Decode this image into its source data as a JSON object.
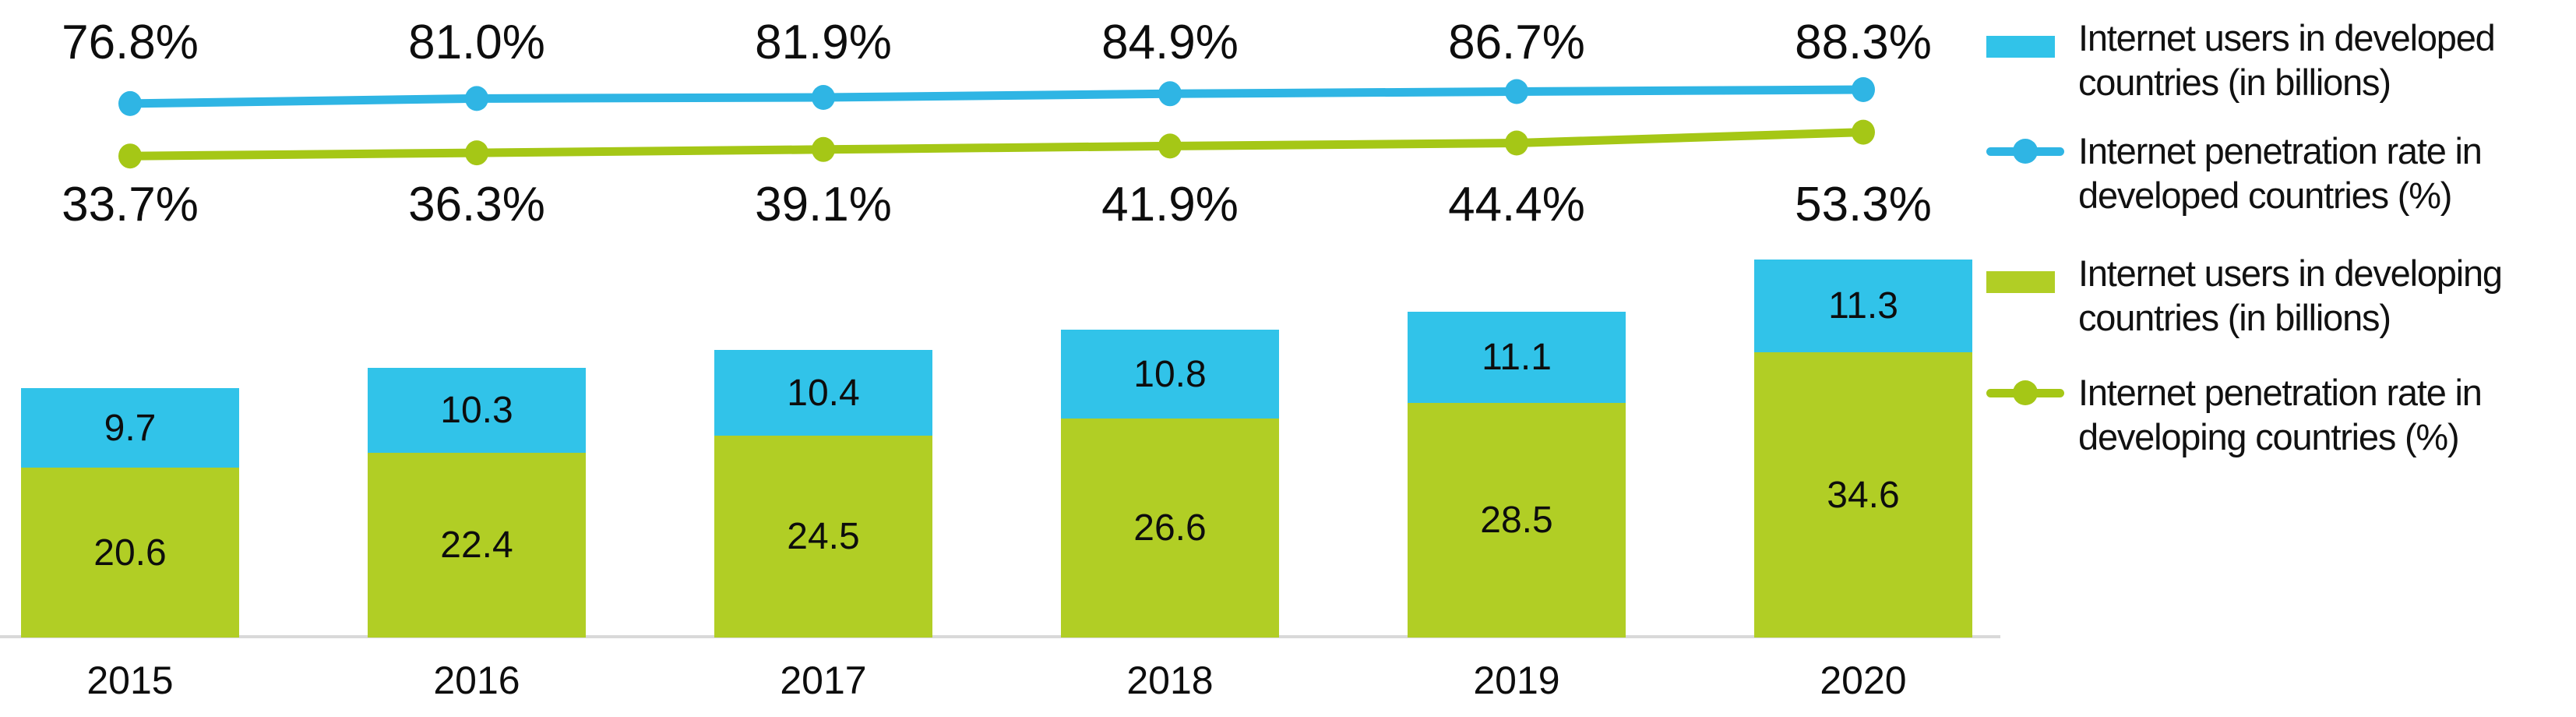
{
  "chart_data": {
    "type": "combo-stacked-bar-line",
    "title": "",
    "categories": [
      "2015",
      "2016",
      "2017",
      "2018",
      "2019",
      "2020"
    ],
    "bar_series": [
      {
        "name": "Internet users in developing countries (in billions)",
        "stack_position": "bottom",
        "color": "#b1ce25",
        "values": [
          20.6,
          22.4,
          24.5,
          26.6,
          28.5,
          34.6
        ],
        "labels": [
          "20.6",
          "22.4",
          "24.5",
          "26.6",
          "28.5",
          "34.6"
        ]
      },
      {
        "name": "Internet users in developed countries (in billions)",
        "stack_position": "top",
        "color": "#31c3e9",
        "values": [
          9.7,
          10.3,
          10.4,
          10.8,
          11.1,
          11.3
        ],
        "labels": [
          "9.7",
          "10.3",
          "10.4",
          "10.8",
          "11.1",
          "11.3"
        ]
      }
    ],
    "line_series": [
      {
        "name": "Internet penetration rate in developed countries (%)",
        "color": "#2fb5e4",
        "values": [
          76.8,
          81.0,
          81.9,
          84.9,
          86.7,
          88.3
        ],
        "labels": [
          "76.8%",
          "81.0%",
          "81.9%",
          "84.9%",
          "86.7%",
          "88.3%"
        ],
        "label_position": "above-line"
      },
      {
        "name": "Internet penetration rate in developing countries (%)",
        "color": "#a5c716",
        "values": [
          33.7,
          36.3,
          39.1,
          41.9,
          44.4,
          53.3
        ],
        "labels": [
          "33.7%",
          "36.3%",
          "39.1%",
          "41.9%",
          "44.4%",
          "53.3%"
        ],
        "label_position": "below-line"
      }
    ],
    "legend": {
      "position": "right",
      "items": [
        {
          "swatch": "bar",
          "color": "#31c3e9",
          "line1": "Internet users in developed",
          "line2": "countries (in billions)"
        },
        {
          "swatch": "line-marker",
          "color": "#2fb5e4",
          "line1": "Internet penetration rate in",
          "line2": "developed countries (%)"
        },
        {
          "swatch": "bar",
          "color": "#b1ce25",
          "line1": "Internet users in developing",
          "line2": "countries (in billions)"
        },
        {
          "swatch": "line-marker",
          "color": "#a5c716",
          "line1": "Internet penetration rate in",
          "line2": "developing countries (%)"
        }
      ]
    },
    "axes": {
      "x_labels": [
        "2015",
        "2016",
        "2017",
        "2018",
        "2019",
        "2020"
      ],
      "y_axis_visible": false,
      "gridlines": false,
      "baseline_color": "#d9d9d9"
    }
  }
}
